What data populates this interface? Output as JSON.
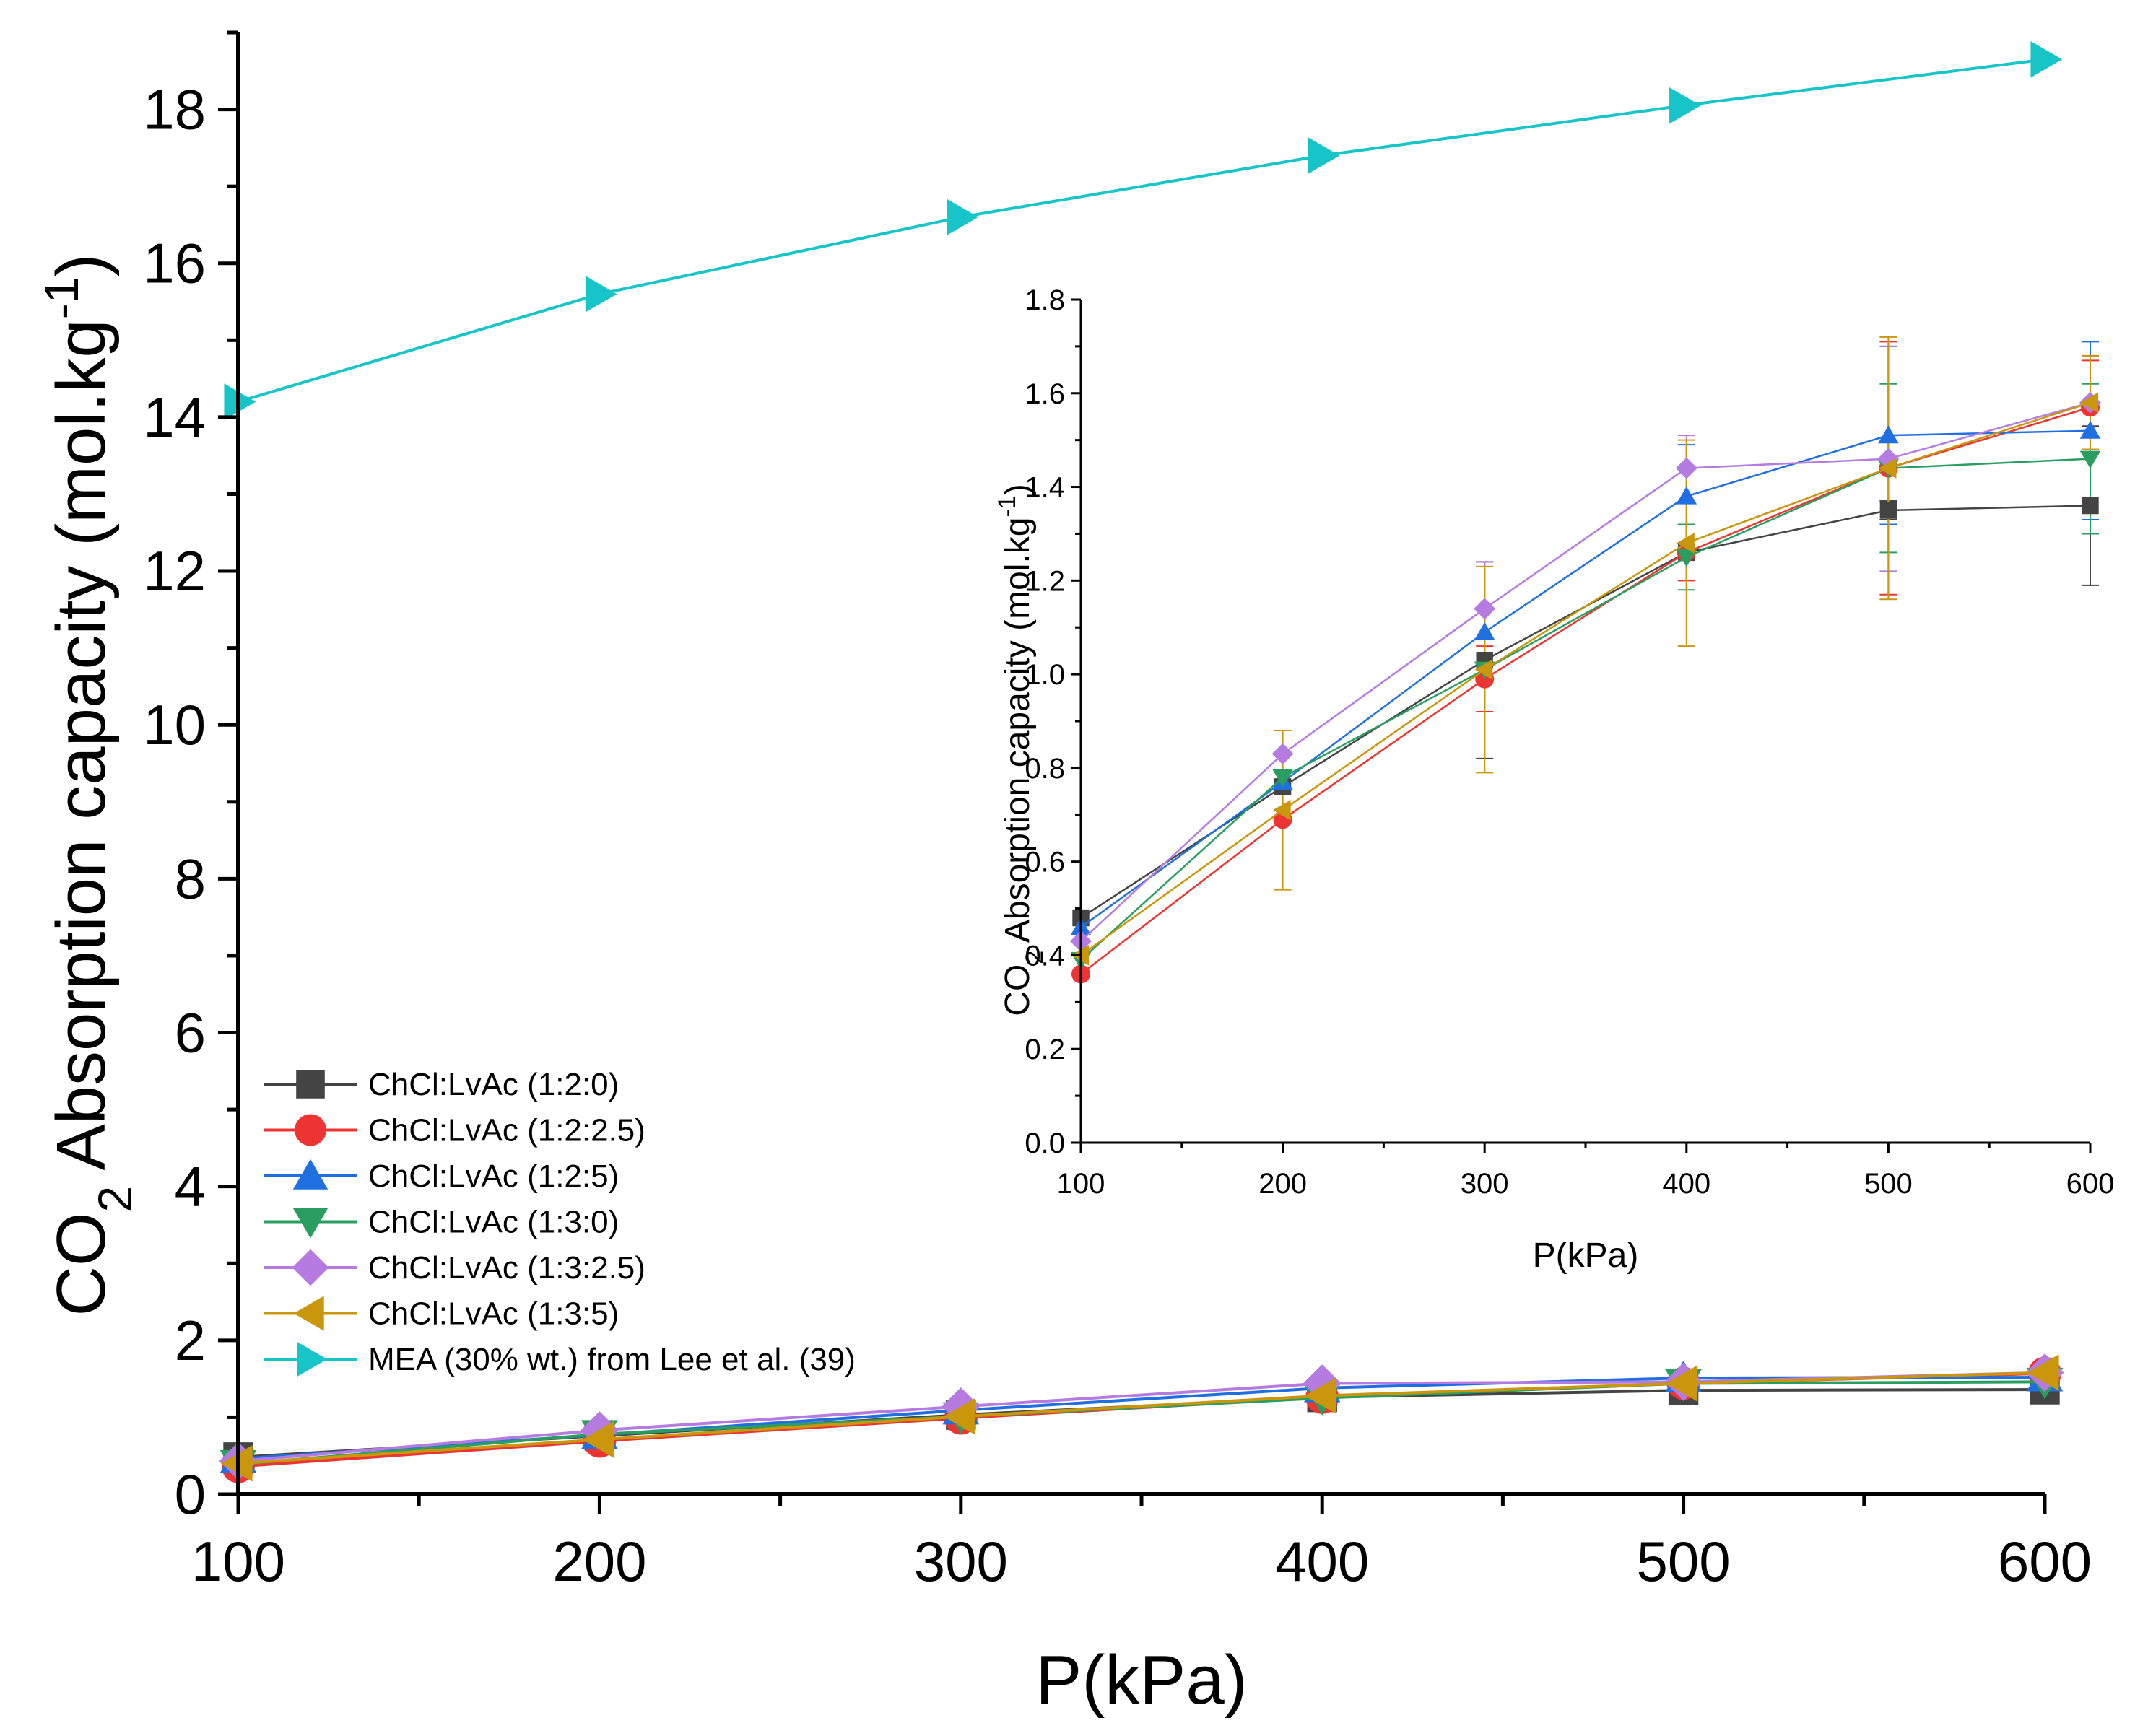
{
  "chart_data": [
    {
      "id": "main",
      "type": "line",
      "title": "",
      "xlabel": "P(kPa)",
      "ylabel": {
        "prefix": "CO",
        "subscript": "2",
        "rest": " Absorption capacity (mol.kg",
        "superscript": "-1",
        "suffix": ")"
      },
      "xlim": [
        100,
        600
      ],
      "ylim": [
        0,
        19
      ],
      "xticks": [
        "100",
        "200",
        "300",
        "400",
        "500",
        "600"
      ],
      "yticks": [
        "0",
        "2",
        "4",
        "6",
        "8",
        "10",
        "12",
        "14",
        "16",
        "18"
      ],
      "x": [
        100,
        200,
        300,
        400,
        500,
        600
      ],
      "legend_position": "bottom-left",
      "series": [
        {
          "name": "ChCl:LvAc (1:2:0)",
          "color": "#444444",
          "marker": "square",
          "values": [
            0.48,
            0.76,
            1.03,
            1.26,
            1.35,
            1.36
          ]
        },
        {
          "name": "ChCl:LvAc (1:2:2.5)",
          "color": "#ee3333",
          "marker": "circle",
          "values": [
            0.36,
            0.69,
            0.99,
            1.26,
            1.44,
            1.57
          ]
        },
        {
          "name": "ChCl:LvAc (1:2:5)",
          "color": "#1f6fe0",
          "marker": "triangle-up",
          "values": [
            0.46,
            0.77,
            1.09,
            1.38,
            1.51,
            1.52
          ]
        },
        {
          "name": "ChCl:LvAc (1:3:0)",
          "color": "#2a9e60",
          "marker": "triangle-down",
          "values": [
            0.39,
            0.78,
            1.01,
            1.25,
            1.44,
            1.46
          ]
        },
        {
          "name": "ChCl:LvAc (1:3:2.5)",
          "color": "#b57be0",
          "marker": "diamond",
          "values": [
            0.43,
            0.83,
            1.14,
            1.44,
            1.46,
            1.58
          ]
        },
        {
          "name": "ChCl:LvAc (1:3:5)",
          "color": "#c9960c",
          "marker": "triangle-left",
          "values": [
            0.4,
            0.71,
            1.01,
            1.28,
            1.44,
            1.58
          ]
        },
        {
          "name": "MEA (30% wt.) from Lee et al. (39)",
          "color": "#17c4c8",
          "marker": "triangle-right",
          "values": [
            14.2,
            15.6,
            16.6,
            17.4,
            18.05,
            18.65
          ]
        }
      ]
    },
    {
      "id": "inset",
      "type": "line",
      "title": "",
      "xlabel": "P(kPa)",
      "ylabel": {
        "prefix": "CO",
        "subscript": "2",
        "rest": " Absorption capacity (mol.kg",
        "superscript": "-1",
        "suffix": ")"
      },
      "xlim": [
        100,
        600
      ],
      "ylim": [
        0,
        1.8
      ],
      "xticks": [
        "100",
        "200",
        "300",
        "400",
        "500",
        "600"
      ],
      "yticks": [
        "0.0",
        "0.2",
        "0.4",
        "0.6",
        "0.8",
        "1.0",
        "1.2",
        "1.4",
        "1.6",
        "1.8"
      ],
      "x": [
        100,
        200,
        300,
        400,
        500,
        600
      ],
      "series": [
        {
          "name": "ChCl:LvAc (1:2:0)",
          "color": "#444444",
          "marker": "square",
          "values": [
            0.48,
            0.76,
            1.03,
            1.26,
            1.35,
            1.36
          ],
          "errors": [
            0.0,
            0.0,
            0.21,
            0.0,
            0.02,
            0.17
          ]
        },
        {
          "name": "ChCl:LvAc (1:2:2.5)",
          "color": "#ee3333",
          "marker": "circle",
          "values": [
            0.36,
            0.69,
            0.99,
            1.26,
            1.44,
            1.57
          ],
          "errors": [
            0.0,
            0.0,
            0.07,
            0.06,
            0.27,
            0.1
          ]
        },
        {
          "name": "ChCl:LvAc (1:2:5)",
          "color": "#1f6fe0",
          "marker": "triangle-up",
          "values": [
            0.46,
            0.77,
            1.09,
            1.38,
            1.51,
            1.52
          ],
          "errors": [
            0.0,
            0.0,
            0.0,
            0.11,
            0.19,
            0.19
          ]
        },
        {
          "name": "ChCl:LvAc (1:3:0)",
          "color": "#2a9e60",
          "marker": "triangle-down",
          "values": [
            0.39,
            0.78,
            1.01,
            1.25,
            1.44,
            1.46
          ],
          "errors": [
            0.0,
            0.0,
            0.0,
            0.07,
            0.18,
            0.16
          ]
        },
        {
          "name": "ChCl:LvAc (1:3:2.5)",
          "color": "#b57be0",
          "marker": "diamond",
          "values": [
            0.43,
            0.83,
            1.14,
            1.44,
            1.46,
            1.58
          ],
          "errors": [
            0.0,
            0.0,
            0.1,
            0.07,
            0.24,
            0.1
          ]
        },
        {
          "name": "ChCl:LvAc (1:3:5)",
          "color": "#c9960c",
          "marker": "triangle-left",
          "values": [
            0.4,
            0.71,
            1.01,
            1.28,
            1.44,
            1.58
          ],
          "errors": [
            0.0,
            0.17,
            0.22,
            0.22,
            0.28,
            0.1
          ]
        }
      ]
    }
  ]
}
